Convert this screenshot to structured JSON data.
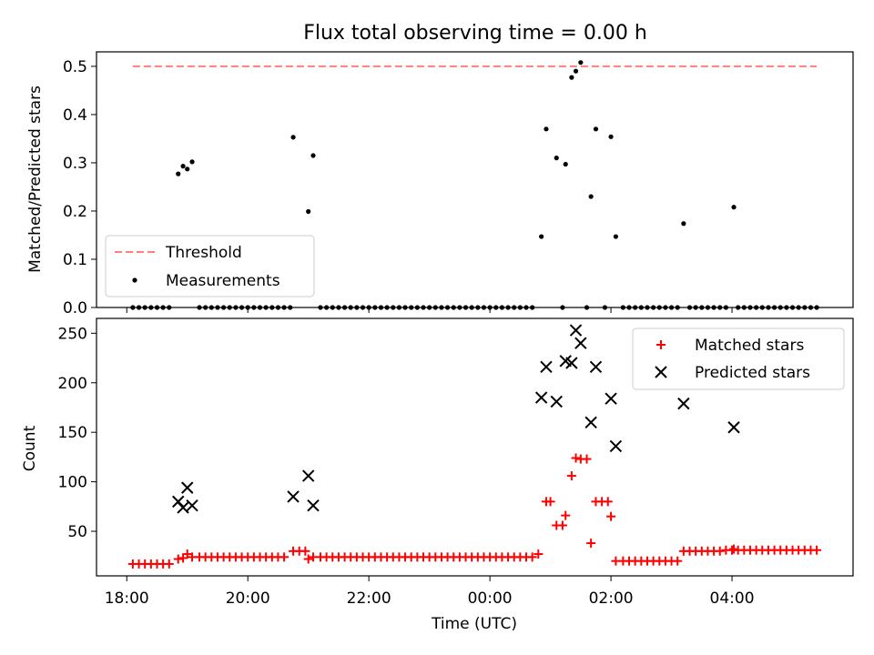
{
  "chart_data": [
    {
      "type": "scatter",
      "title": "Flux total observing time = 0.00 h",
      "ylabel": "Matched/Predicted stars",
      "xlim": [
        -0.5,
        12.0
      ],
      "ylim": [
        0,
        0.53
      ],
      "yticks": [
        0.0,
        0.1,
        0.2,
        0.3,
        0.4,
        0.5
      ],
      "ytick_labels": [
        "0.0",
        "0.1",
        "0.2",
        "0.3",
        "0.4",
        "0.5"
      ],
      "legend": {
        "position": "lower-left"
      },
      "threshold": {
        "name": "Threshold",
        "value": 0.5,
        "x_range": [
          0.1,
          11.4
        ],
        "color": "#ff7f7f"
      },
      "series": [
        {
          "name": "Measurements",
          "color": "#000000",
          "points": [
            [
              0.85,
              0.277
            ],
            [
              0.93,
              0.293
            ],
            [
              1.0,
              0.287
            ],
            [
              1.08,
              0.302
            ],
            [
              2.75,
              0.353
            ],
            [
              3.0,
              0.199
            ],
            [
              3.08,
              0.315
            ],
            [
              6.85,
              0.147
            ],
            [
              6.93,
              0.37
            ],
            [
              7.1,
              0.31
            ],
            [
              7.25,
              0.297
            ],
            [
              7.35,
              0.477
            ],
            [
              7.42,
              0.49
            ],
            [
              7.5,
              0.508
            ],
            [
              7.67,
              0.23
            ],
            [
              7.75,
              0.37
            ],
            [
              8.0,
              0.354
            ],
            [
              8.08,
              0.147
            ],
            [
              9.2,
              0.174
            ],
            [
              10.03,
              0.208
            ]
          ],
          "zero_x": [
            0.1,
            0.2,
            0.3,
            0.4,
            0.5,
            0.6,
            0.7,
            1.2,
            1.3,
            1.4,
            1.5,
            1.6,
            1.7,
            1.8,
            1.9,
            2.0,
            2.1,
            2.2,
            2.3,
            2.4,
            2.5,
            2.6,
            2.7,
            3.2,
            3.3,
            3.4,
            3.5,
            3.6,
            3.7,
            3.8,
            3.9,
            4.0,
            4.1,
            4.2,
            4.3,
            4.4,
            4.5,
            4.6,
            4.7,
            4.8,
            4.9,
            5.0,
            5.1,
            5.2,
            5.3,
            5.4,
            5.5,
            5.6,
            5.7,
            5.8,
            5.9,
            6.0,
            6.1,
            6.2,
            6.3,
            6.4,
            6.5,
            6.6,
            6.7,
            7.2,
            7.6,
            7.9,
            8.2,
            8.3,
            8.4,
            8.5,
            8.6,
            8.7,
            8.8,
            8.9,
            9.0,
            9.1,
            9.3,
            9.4,
            9.5,
            9.6,
            9.7,
            9.8,
            9.9,
            10.1,
            10.2,
            10.3,
            10.4,
            10.5,
            10.6,
            10.7,
            10.8,
            10.9,
            11.0,
            11.1,
            11.2,
            11.3,
            11.4
          ]
        }
      ]
    },
    {
      "type": "scatter",
      "xlabel": "Time (UTC)",
      "ylabel": "Count",
      "xlim": [
        -0.5,
        12.0
      ],
      "ylim": [
        5,
        265
      ],
      "xticks": [
        0,
        2,
        4,
        6,
        8,
        10
      ],
      "xtick_labels": [
        "18:00",
        "20:00",
        "22:00",
        "00:00",
        "02:00",
        "04:00"
      ],
      "yticks": [
        50,
        100,
        150,
        200,
        250
      ],
      "ytick_labels": [
        "50",
        "100",
        "150",
        "200",
        "250"
      ],
      "legend": {
        "position": "top-right"
      },
      "series": [
        {
          "name": "Matched stars",
          "marker": "plus",
          "color": "#ff0000",
          "points": [
            [
              0.1,
              17
            ],
            [
              0.2,
              17
            ],
            [
              0.3,
              17
            ],
            [
              0.4,
              17
            ],
            [
              0.5,
              17
            ],
            [
              0.6,
              17
            ],
            [
              0.7,
              17
            ],
            [
              0.85,
              22
            ],
            [
              0.93,
              23
            ],
            [
              1.0,
              27
            ],
            [
              1.08,
              24
            ],
            [
              1.2,
              24
            ],
            [
              1.3,
              24
            ],
            [
              1.4,
              24
            ],
            [
              1.5,
              24
            ],
            [
              1.6,
              24
            ],
            [
              1.7,
              24
            ],
            [
              1.8,
              24
            ],
            [
              1.9,
              24
            ],
            [
              2.0,
              24
            ],
            [
              2.1,
              24
            ],
            [
              2.2,
              24
            ],
            [
              2.3,
              24
            ],
            [
              2.4,
              24
            ],
            [
              2.5,
              24
            ],
            [
              2.6,
              24
            ],
            [
              2.75,
              30
            ],
            [
              2.85,
              30
            ],
            [
              2.95,
              30
            ],
            [
              3.0,
              22
            ],
            [
              3.08,
              24
            ],
            [
              3.2,
              24
            ],
            [
              3.3,
              24
            ],
            [
              3.4,
              24
            ],
            [
              3.5,
              24
            ],
            [
              3.6,
              24
            ],
            [
              3.7,
              24
            ],
            [
              3.8,
              24
            ],
            [
              3.9,
              24
            ],
            [
              4.0,
              24
            ],
            [
              4.1,
              24
            ],
            [
              4.2,
              24
            ],
            [
              4.3,
              24
            ],
            [
              4.4,
              24
            ],
            [
              4.5,
              24
            ],
            [
              4.6,
              24
            ],
            [
              4.7,
              24
            ],
            [
              4.8,
              24
            ],
            [
              4.9,
              24
            ],
            [
              5.0,
              24
            ],
            [
              5.1,
              24
            ],
            [
              5.2,
              24
            ],
            [
              5.3,
              24
            ],
            [
              5.4,
              24
            ],
            [
              5.5,
              24
            ],
            [
              5.6,
              24
            ],
            [
              5.7,
              24
            ],
            [
              5.8,
              24
            ],
            [
              5.9,
              24
            ],
            [
              6.0,
              24
            ],
            [
              6.1,
              24
            ],
            [
              6.2,
              24
            ],
            [
              6.3,
              24
            ],
            [
              6.4,
              24
            ],
            [
              6.5,
              24
            ],
            [
              6.6,
              24
            ],
            [
              6.7,
              24
            ],
            [
              6.8,
              27
            ],
            [
              6.93,
              80
            ],
            [
              7.0,
              80
            ],
            [
              7.1,
              56
            ],
            [
              7.2,
              56
            ],
            [
              7.25,
              66
            ],
            [
              7.35,
              106
            ],
            [
              7.42,
              124
            ],
            [
              7.5,
              123
            ],
            [
              7.6,
              123
            ],
            [
              7.67,
              38
            ],
            [
              7.75,
              80
            ],
            [
              7.85,
              80
            ],
            [
              7.95,
              80
            ],
            [
              8.0,
              65
            ],
            [
              8.08,
              20
            ],
            [
              8.2,
              20
            ],
            [
              8.3,
              20
            ],
            [
              8.4,
              20
            ],
            [
              8.5,
              20
            ],
            [
              8.6,
              20
            ],
            [
              8.7,
              20
            ],
            [
              8.8,
              20
            ],
            [
              8.9,
              20
            ],
            [
              9.0,
              20
            ],
            [
              9.1,
              20
            ],
            [
              9.2,
              30
            ],
            [
              9.3,
              30
            ],
            [
              9.4,
              30
            ],
            [
              9.5,
              30
            ],
            [
              9.6,
              30
            ],
            [
              9.7,
              30
            ],
            [
              9.8,
              30
            ],
            [
              9.9,
              31
            ],
            [
              10.0,
              31
            ],
            [
              10.03,
              32
            ],
            [
              10.1,
              31
            ],
            [
              10.2,
              31
            ],
            [
              10.3,
              31
            ],
            [
              10.4,
              31
            ],
            [
              10.5,
              31
            ],
            [
              10.6,
              31
            ],
            [
              10.7,
              31
            ],
            [
              10.8,
              31
            ],
            [
              10.9,
              31
            ],
            [
              11.0,
              31
            ],
            [
              11.1,
              31
            ],
            [
              11.2,
              31
            ],
            [
              11.3,
              31
            ],
            [
              11.4,
              31
            ]
          ]
        },
        {
          "name": "Predicted stars",
          "marker": "x",
          "color": "#000000",
          "points": [
            [
              0.85,
              80
            ],
            [
              0.93,
              74
            ],
            [
              1.0,
              94
            ],
            [
              1.08,
              76
            ],
            [
              2.75,
              85
            ],
            [
              3.0,
              106
            ],
            [
              3.08,
              76
            ],
            [
              6.85,
              185
            ],
            [
              6.93,
              216
            ],
            [
              7.1,
              181
            ],
            [
              7.25,
              222
            ],
            [
              7.35,
              220
            ],
            [
              7.42,
              253
            ],
            [
              7.5,
              240
            ],
            [
              7.67,
              160
            ],
            [
              7.75,
              216
            ],
            [
              8.0,
              184
            ],
            [
              8.08,
              136
            ],
            [
              9.2,
              179
            ],
            [
              10.03,
              155
            ]
          ]
        }
      ]
    }
  ]
}
